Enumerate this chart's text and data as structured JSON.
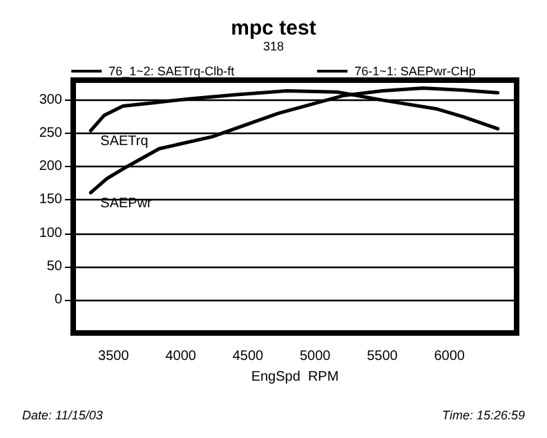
{
  "chart_data": {
    "type": "line",
    "title": "mpc test",
    "subtitle": "318",
    "xlabel": "EngSpd  RPM",
    "xlim": [
      3200,
      6500
    ],
    "xticks": [
      3500,
      4000,
      4500,
      5000,
      5500,
      6000
    ],
    "ylim": [
      -50,
      330
    ],
    "yticks": [
      0,
      50,
      100,
      150,
      200,
      250,
      300
    ],
    "grid": "y",
    "legend": "top",
    "marker": "none",
    "line_style": "solid",
    "series": [
      {
        "name": "76_1~2: SAETrq-Clb-ft",
        "color": "#000000",
        "x": [
          3330,
          3430,
          3570,
          3800,
          4070,
          4400,
          4790,
          5170,
          5500,
          5900,
          6100,
          6360
        ],
        "values": [
          254,
          277,
          291,
          296,
          302,
          308,
          314,
          312,
          300,
          287,
          275,
          257
        ]
      },
      {
        "name": "76-1~1: SAEPwr-CHp",
        "color": "#000000",
        "x": [
          3330,
          3450,
          3600,
          3840,
          4235,
          4725,
          5215,
          5500,
          5805,
          6100,
          6360
        ],
        "values": [
          161,
          182,
          200,
          227,
          245,
          280,
          307,
          314,
          318,
          315,
          311
        ]
      }
    ],
    "annotations": [
      {
        "text": "SAETrq",
        "x": 3330,
        "y": 254
      },
      {
        "text": "SAEPwr",
        "x": 3330,
        "y": 161
      },
      "Date: 11/15/03",
      "Time: 15:26:59"
    ]
  }
}
